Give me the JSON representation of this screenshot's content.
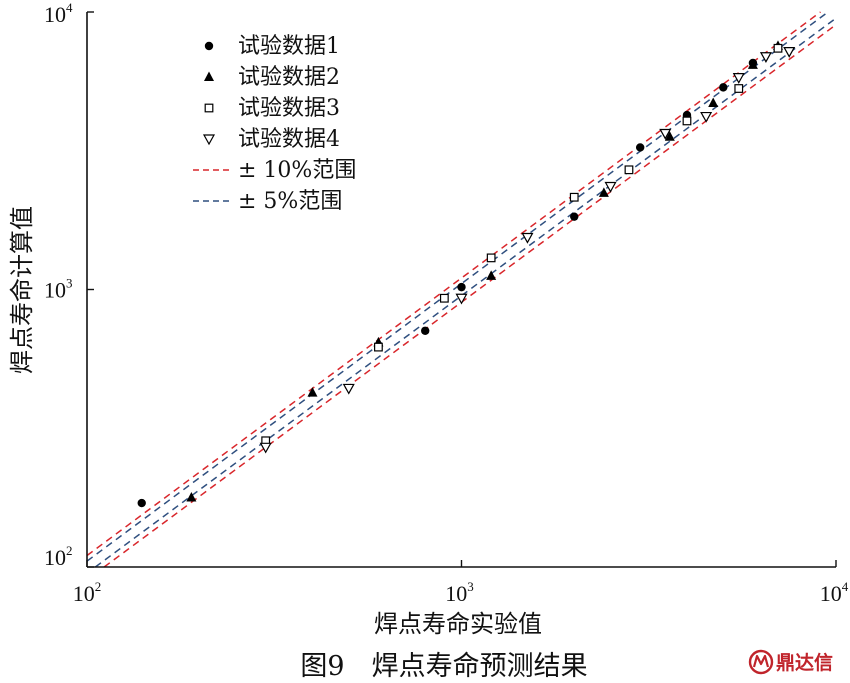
{
  "caption": "图9　焊点寿命预测结果",
  "watermark": {
    "text": "鼎达信",
    "color": "#c0242b"
  },
  "colors": {
    "band_10": "#d9262b",
    "band_5": "#2f4f7f",
    "markers": "#000000"
  },
  "chart_data": {
    "type": "scatter",
    "xlabel": "焊点寿命实验值",
    "ylabel": "焊点寿命计算值",
    "x_scale": "log",
    "y_scale": "log",
    "xlim": [
      100,
      10000
    ],
    "ylim": [
      100,
      10000
    ],
    "grid": false,
    "legend_position": "top-left",
    "x_ticks": [
      {
        "value": 100,
        "base": "10",
        "exp": "2"
      },
      {
        "value": 1000,
        "base": "10",
        "exp": "3"
      },
      {
        "value": 10000,
        "base": "10",
        "exp": "4"
      }
    ],
    "y_ticks": [
      {
        "value": 100,
        "base": "10",
        "exp": "2"
      },
      {
        "value": 1000,
        "base": "10",
        "exp": "3"
      },
      {
        "value": 10000,
        "base": "10",
        "exp": "4"
      }
    ],
    "series": [
      {
        "name": "试验数据1",
        "marker": "circle",
        "points": [
          [
            140,
            170
          ],
          [
            800,
            710
          ],
          [
            1000,
            1020
          ],
          [
            2000,
            1830
          ],
          [
            3000,
            3250
          ],
          [
            4000,
            4250
          ],
          [
            5000,
            5350
          ],
          [
            6000,
            6550
          ]
        ]
      },
      {
        "name": "试验数据2",
        "marker": "triangle-up",
        "points": [
          [
            190,
            178
          ],
          [
            400,
            425
          ],
          [
            600,
            645
          ],
          [
            1200,
            1120
          ],
          [
            2400,
            2230
          ],
          [
            3600,
            3550
          ],
          [
            4700,
            4700
          ],
          [
            6000,
            6450
          ],
          [
            7000,
            7550
          ]
        ]
      },
      {
        "name": "试验数据3",
        "marker": "square",
        "points": [
          [
            300,
            285
          ],
          [
            600,
            620
          ],
          [
            900,
            930
          ],
          [
            1200,
            1300
          ],
          [
            2000,
            2150
          ],
          [
            2800,
            2700
          ],
          [
            4000,
            4050
          ],
          [
            5500,
            5300
          ],
          [
            7000,
            7400
          ]
        ]
      },
      {
        "name": "试验数据4",
        "marker": "triangle-down",
        "points": [
          [
            300,
            270
          ],
          [
            500,
            440
          ],
          [
            1000,
            930
          ],
          [
            1500,
            1540
          ],
          [
            2500,
            2350
          ],
          [
            3500,
            3650
          ],
          [
            4500,
            4200
          ],
          [
            5500,
            5800
          ],
          [
            6500,
            6900
          ],
          [
            7500,
            7200
          ]
        ]
      }
    ],
    "bands": [
      {
        "name": "± 10%范围",
        "factors": [
          1.1,
          0.9
        ],
        "color": "#d9262b"
      },
      {
        "name": "± 5%范围",
        "factors": [
          1.05,
          0.95
        ],
        "color": "#2f4f7f"
      }
    ]
  }
}
